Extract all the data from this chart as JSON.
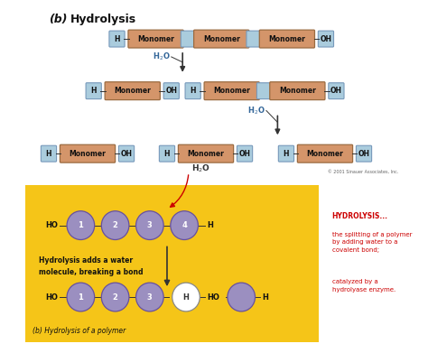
{
  "title_italic": "(b)",
  "title_bold": "Hydrolysis",
  "bg_color": "#ffffff",
  "monomer_box_color": "#d4956a",
  "monomer_box_edge": "#9B6B40",
  "connector_color": "#aaccdd",
  "connector_edge": "#7799bb",
  "h_box_color": "#aaccdd",
  "h_box_edge": "#7799bb",
  "arrow_color": "#333333",
  "h2o_color": "#336699",
  "circle_color": "#9b8fc0",
  "circle_edge": "#6650a0",
  "yellow_bg": "#f5c518",
  "red_text": "#cc0000",
  "copyright": "© 2001 Sinauer Associates, Inc.",
  "hydrolysis_def_title": "HYDROLYSIS...",
  "hydrolysis_def1": "the splitting of a polymer\nby adding water to a\ncovalent bond;",
  "hydrolysis_def2": "catalyzed by a\nhydrolyase enzyme.",
  "bottom_caption": "(b) Hydrolysis of a polymer"
}
